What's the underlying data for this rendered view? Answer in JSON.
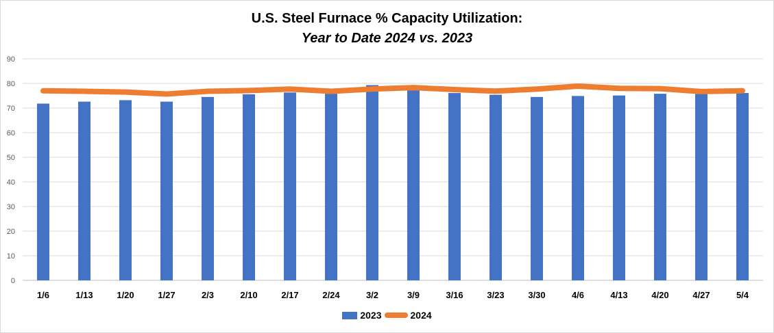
{
  "chart_data": {
    "type": "bar",
    "title": "U.S. Steel Furnace % Capacity Utilization:",
    "subtitle": "Year to Date 2024 vs. 2023",
    "categories": [
      "1/6",
      "1/13",
      "1/20",
      "1/27",
      "2/3",
      "2/10",
      "2/17",
      "2/24",
      "3/2",
      "3/9",
      "3/16",
      "3/23",
      "3/30",
      "4/6",
      "4/13",
      "4/20",
      "4/27",
      "5/4"
    ],
    "series": [
      {
        "name": "2023",
        "type": "bar",
        "color": "#4472c4",
        "values": [
          71.8,
          72.6,
          73.2,
          72.6,
          74.5,
          75.6,
          76.3,
          75.8,
          79.3,
          77.2,
          76.1,
          75.4,
          74.5,
          74.9,
          75.1,
          75.8,
          75.7,
          76.1
        ]
      },
      {
        "name": "2024",
        "type": "line",
        "color": "#ed7d31",
        "values": [
          77.0,
          76.8,
          76.5,
          75.7,
          76.8,
          77.1,
          77.7,
          76.8,
          77.7,
          78.3,
          77.5,
          76.9,
          77.7,
          78.9,
          78.0,
          77.9,
          76.7,
          77.0
        ]
      }
    ],
    "ylim": [
      0,
      90
    ],
    "yticks": [
      "0",
      "10",
      "20",
      "30",
      "40",
      "50",
      "60",
      "70",
      "80",
      "90"
    ],
    "grid": true,
    "legend_position": "bottom"
  }
}
